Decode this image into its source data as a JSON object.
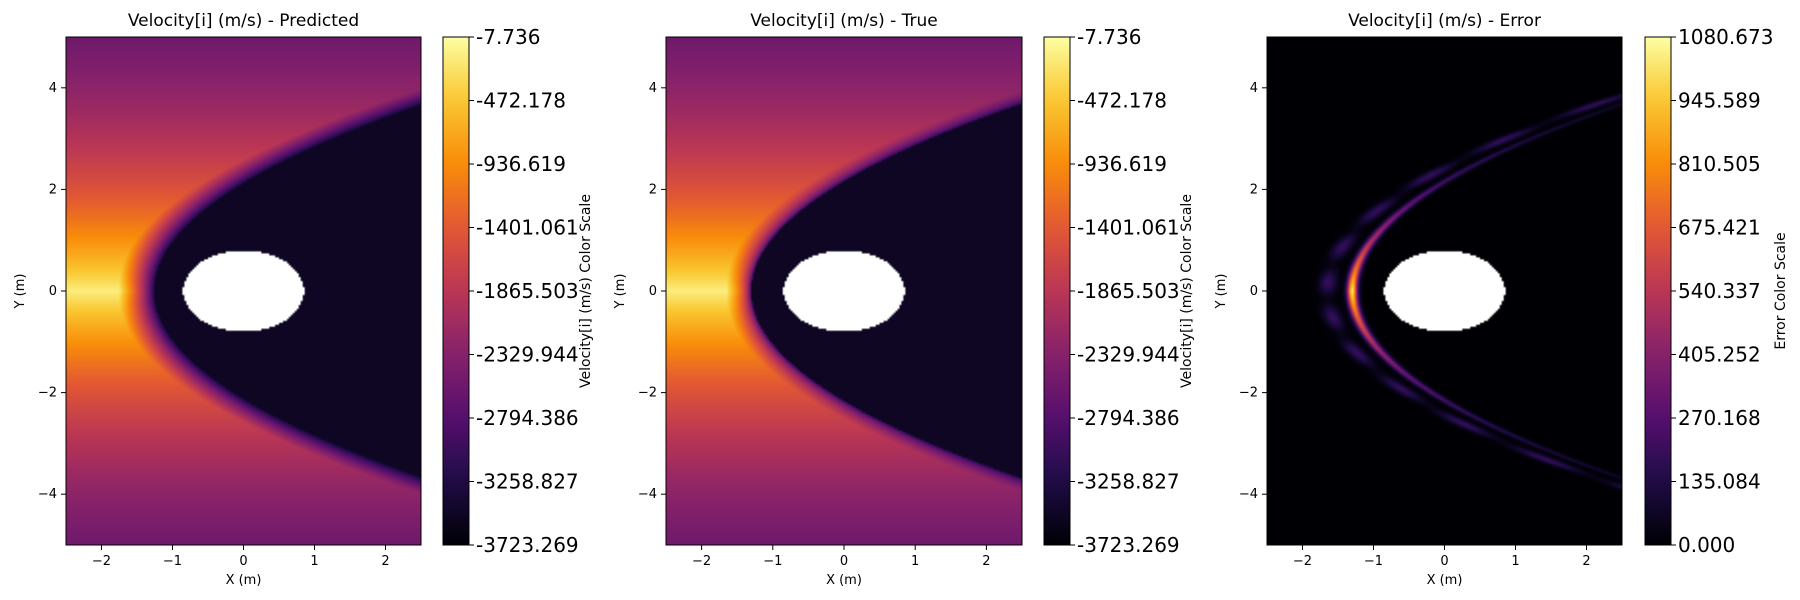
{
  "chart_data": [
    {
      "type": "heatmap",
      "title": "Velocity[i] (m/s) - Predicted",
      "xlabel": "X (m)",
      "ylabel": "Y (m)",
      "xlim": [
        -2.5,
        2.5
      ],
      "ylim": [
        -5,
        5
      ],
      "xticks": [
        "−2",
        "−1",
        "0",
        "1",
        "2"
      ],
      "xtick_values": [
        -2,
        -1,
        0,
        1,
        2
      ],
      "yticks": [
        "4",
        "2",
        "0",
        "−2",
        "−4"
      ],
      "ytick_values": [
        4,
        2,
        0,
        -2,
        -4
      ],
      "colormap": "inferno",
      "colorbar": {
        "label": "Velocity[i] (m/s) Color Scale",
        "min": -3723.269,
        "max": -7.736,
        "ticks": [
          "-7.736",
          "-472.178",
          "-936.619",
          "-1401.061",
          "-1865.503",
          "-2329.944",
          "-2794.386",
          "-3258.827",
          "-3723.269"
        ]
      },
      "body_semi_axes": [
        0.85,
        0.8
      ],
      "shock": {
        "vertex_x": -1.25,
        "width": 0.5,
        "sharpness": 1.4
      }
    },
    {
      "type": "heatmap",
      "title": "Velocity[i] (m/s) - True",
      "xlabel": "X (m)",
      "ylabel": "Y (m)",
      "xlim": [
        -2.5,
        2.5
      ],
      "ylim": [
        -5,
        5
      ],
      "xticks": [
        "−2",
        "−1",
        "0",
        "1",
        "2"
      ],
      "xtick_values": [
        -2,
        -1,
        0,
        1,
        2
      ],
      "yticks": [
        "4",
        "2",
        "0",
        "−2",
        "−4"
      ],
      "ytick_values": [
        4,
        2,
        0,
        -2,
        -4
      ],
      "colormap": "inferno",
      "colorbar": {
        "label": "Velocity[i] (m/s) Color Scale",
        "min": -3723.269,
        "max": -7.736,
        "ticks": [
          "-7.736",
          "-472.178",
          "-936.619",
          "-1401.061",
          "-1865.503",
          "-2329.944",
          "-2794.386",
          "-3258.827",
          "-3723.269"
        ]
      },
      "body_semi_axes": [
        0.85,
        0.8
      ],
      "shock": {
        "vertex_x": -1.3,
        "width": 0.35,
        "sharpness": 2.2
      }
    },
    {
      "type": "heatmap",
      "title": "Velocity[i] (m/s) - Error",
      "xlabel": "X (m)",
      "ylabel": "Y (m)",
      "xlim": [
        -2.5,
        2.5
      ],
      "ylim": [
        -5,
        5
      ],
      "xticks": [
        "−2",
        "−1",
        "0",
        "1",
        "2"
      ],
      "xtick_values": [
        -2,
        -1,
        0,
        1,
        2
      ],
      "yticks": [
        "4",
        "2",
        "0",
        "−2",
        "−4"
      ],
      "ytick_values": [
        4,
        2,
        0,
        -2,
        -4
      ],
      "colormap": "inferno",
      "colorbar": {
        "label": "Error Color Scale",
        "min": 0.0,
        "max": 1080.673,
        "ticks": [
          "1080.673",
          "945.589",
          "810.505",
          "675.421",
          "540.337",
          "405.252",
          "270.168",
          "135.084",
          "0.000"
        ]
      },
      "body_semi_axes": [
        0.85,
        0.8
      ],
      "shock": {
        "vertex_x": -1.3,
        "width": 0.3,
        "sharpness": 2.0
      }
    }
  ]
}
